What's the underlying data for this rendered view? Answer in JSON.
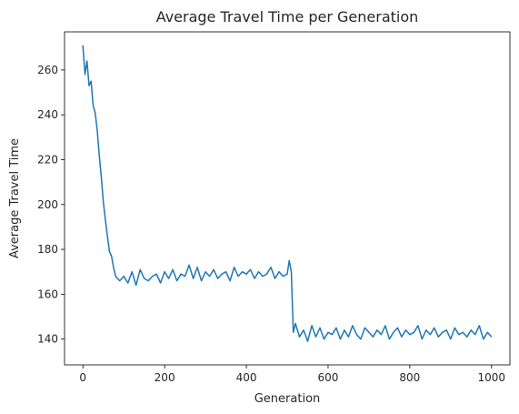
{
  "chart_data": {
    "type": "line",
    "title": "Average Travel Time per Generation",
    "xlabel": "Generation",
    "ylabel": "Average Travel Time",
    "xlim": [
      -45,
      1045
    ],
    "ylim": [
      128.5,
      277
    ],
    "xticks": [
      0,
      200,
      400,
      600,
      800,
      1000
    ],
    "yticks": [
      140,
      160,
      180,
      200,
      220,
      240,
      260
    ],
    "grid": false,
    "color": "#1f77b4",
    "series": [
      {
        "x": [
          0,
          5,
          10,
          15,
          20,
          25,
          30,
          35,
          40,
          45,
          50,
          55,
          60,
          65,
          70,
          75,
          80,
          90,
          100,
          110,
          120,
          130,
          140,
          150,
          160,
          170,
          180,
          190,
          200,
          210,
          220,
          230,
          240,
          250,
          260,
          270,
          280,
          290,
          300,
          310,
          320,
          330,
          340,
          350,
          360,
          370,
          380,
          390,
          400,
          410,
          420,
          430,
          440,
          450,
          460,
          470,
          480,
          490,
          500,
          505,
          510,
          515,
          520,
          530,
          540,
          550,
          560,
          570,
          580,
          590,
          600,
          610,
          620,
          630,
          640,
          650,
          660,
          670,
          680,
          690,
          700,
          710,
          720,
          730,
          740,
          750,
          760,
          770,
          780,
          790,
          800,
          810,
          820,
          830,
          840,
          850,
          860,
          870,
          880,
          890,
          900,
          910,
          920,
          930,
          940,
          950,
          960,
          970,
          980,
          990,
          1000
        ],
        "y": [
          271,
          258,
          264,
          253,
          255,
          244,
          241,
          233,
          222,
          212,
          201,
          193,
          186,
          179,
          177,
          172,
          168,
          166,
          168,
          165,
          170,
          164,
          171,
          167,
          166,
          168,
          169,
          165,
          170,
          167,
          171,
          166,
          169,
          168,
          173,
          167,
          172,
          166,
          170,
          168,
          171,
          167,
          169,
          170,
          166,
          172,
          168,
          170,
          169,
          171,
          167,
          170,
          168,
          169,
          172,
          167,
          170,
          168,
          169,
          175,
          170,
          143,
          147,
          141,
          144,
          139,
          146,
          141,
          145,
          140,
          143,
          142,
          145,
          140,
          144,
          141,
          146,
          142,
          140,
          145,
          143,
          141,
          144,
          142,
          146,
          140,
          143,
          145,
          141,
          144,
          142,
          143,
          146,
          140,
          144,
          142,
          145,
          141,
          143,
          144,
          140,
          145,
          142,
          143,
          141,
          144,
          142,
          146,
          140,
          143,
          141
        ]
      }
    ]
  }
}
